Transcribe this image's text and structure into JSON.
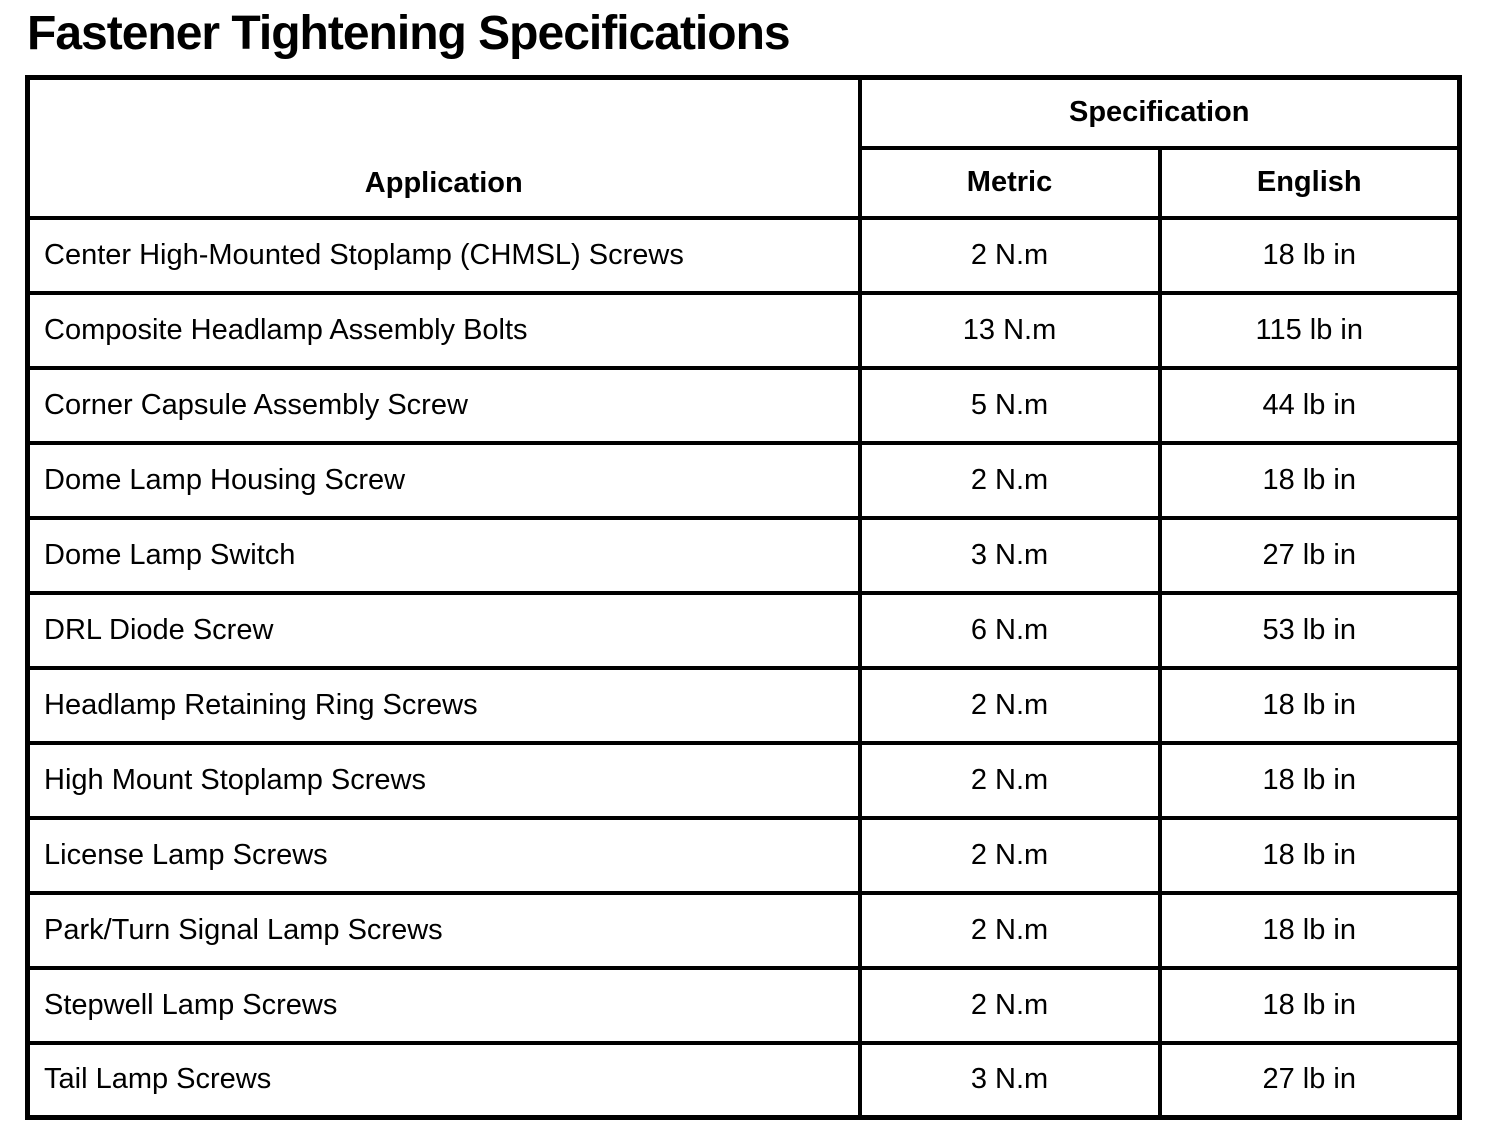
{
  "page": {
    "title": "Fastener Tightening Specifications"
  },
  "colors": {
    "background": "#ffffff",
    "text": "#000000",
    "table_border": "#000000"
  },
  "table": {
    "header": {
      "application": "Application",
      "specification": "Specification",
      "metric": "Metric",
      "english": "English"
    },
    "rows": [
      {
        "application": "Center High-Mounted Stoplamp (CHMSL) Screws",
        "metric": "2 N.m",
        "english": "18 lb in"
      },
      {
        "application": "Composite Headlamp Assembly Bolts",
        "metric": "13 N.m",
        "english": "115 lb in"
      },
      {
        "application": "Corner Capsule Assembly Screw",
        "metric": "5 N.m",
        "english": "44 lb in"
      },
      {
        "application": "Dome Lamp Housing Screw",
        "metric": "2 N.m",
        "english": "18 lb in"
      },
      {
        "application": "Dome Lamp Switch",
        "metric": "3 N.m",
        "english": "27 lb in"
      },
      {
        "application": "DRL Diode Screw",
        "metric": "6 N.m",
        "english": "53 lb in"
      },
      {
        "application": "Headlamp Retaining Ring Screws",
        "metric": "2 N.m",
        "english": "18 lb in"
      },
      {
        "application": "High Mount Stoplamp Screws",
        "metric": "2 N.m",
        "english": "18 lb in"
      },
      {
        "application": "License Lamp Screws",
        "metric": "2 N.m",
        "english": "18 lb in"
      },
      {
        "application": "Park/Turn Signal Lamp Screws",
        "metric": "2 N.m",
        "english": "18 lb in"
      },
      {
        "application": "Stepwell Lamp Screws",
        "metric": "2 N.m",
        "english": "18 lb in"
      },
      {
        "application": "Tail Lamp Screws",
        "metric": "3 N.m",
        "english": "27 lb in"
      }
    ]
  }
}
